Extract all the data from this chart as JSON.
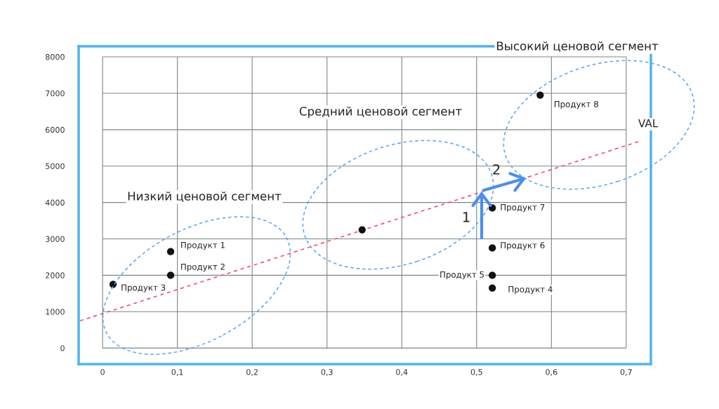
{
  "chart_data": {
    "type": "scatter",
    "xlim": [
      -0.032,
      0.733
    ],
    "ylim": [
      -440,
      8290
    ],
    "xticks": [
      0,
      {
        "value": 0.1,
        "label": "0,1"
      },
      {
        "value": 0.2,
        "label": "0,2"
      },
      {
        "value": 0.3,
        "label": "0,3"
      },
      {
        "value": 0.4,
        "label": "0,4"
      },
      {
        "value": 0.5,
        "label": "0,5"
      },
      {
        "value": 0.6,
        "label": "0,6"
      },
      {
        "value": 0.7,
        "label": "0,7"
      }
    ],
    "yticks": [
      0,
      1000,
      2000,
      3000,
      4000,
      5000,
      6000,
      7000,
      8000
    ],
    "grid": true,
    "series": [
      {
        "marker": "circle",
        "color": "#111111",
        "x": [
          0.014,
          0.091,
          0.091,
          0.347,
          0.521,
          0.521,
          0.521,
          0.521,
          0.585
        ],
        "values": [
          1750,
          2000,
          2650,
          3250,
          3850,
          2750,
          2000,
          1650,
          6950
        ],
        "value_labels": [
          "Продукт 3",
          "Продукт 2",
          "Продукт 1",
          null,
          "Продукт 7",
          "Продукт 6",
          "Продукт 5",
          "Продукт 4",
          "Продукт 8"
        ]
      },
      {
        "type": "line",
        "name": "VAL",
        "color": "#f0506e",
        "line_style": "dashed",
        "x": [
          -0.03,
          0.716
        ],
        "values": [
          750,
          5670
        ]
      }
    ],
    "annotations": [
      "Высокий ценовой сегмент",
      "Средний ценовой сегмент",
      "Низкий ценовой сегмент",
      {
        "text": "1",
        "x": 0.507,
        "y": 4290
      },
      {
        "text": "2",
        "x": 0.537,
        "y": 4500
      }
    ]
  }
}
